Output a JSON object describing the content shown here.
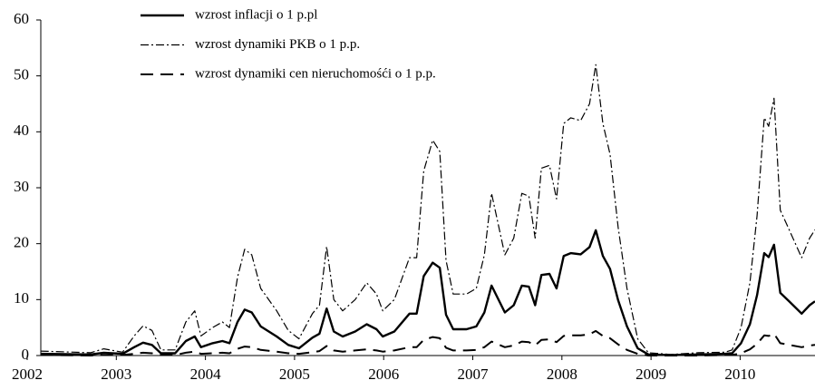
{
  "chart_data": {
    "type": "line",
    "legend": "top-left",
    "grid": false,
    "x": [
      2002.15,
      2002.71,
      2002.86,
      2003.07,
      2003.2,
      2003.3,
      2003.4,
      2003.5,
      2003.66,
      2003.78,
      2003.88,
      2003.95,
      2004.08,
      2004.19,
      2004.27,
      2004.36,
      2004.44,
      2004.52,
      2004.62,
      2004.8,
      2004.93,
      2005.05,
      2005.2,
      2005.28,
      2005.36,
      2005.44,
      2005.54,
      2005.68,
      2005.81,
      2005.92,
      2005.99,
      2006.12,
      2006.29,
      2006.37,
      2006.45,
      2006.55,
      2006.63,
      2006.7,
      2006.78,
      2006.93,
      2007.04,
      2007.13,
      2007.21,
      2007.36,
      2007.46,
      2007.55,
      2007.63,
      2007.7,
      2007.77,
      2007.86,
      2007.94,
      2008.02,
      2008.1,
      2008.21,
      2008.31,
      2008.38,
      2008.46,
      2008.54,
      2008.63,
      2008.73,
      2008.85,
      2008.97,
      2009.22,
      2009.53,
      2009.83,
      2009.91,
      2010.01,
      2010.11,
      2010.19,
      2010.27,
      2010.32,
      2010.38,
      2010.45,
      2010.55,
      2010.69,
      2010.78,
      2010.84
    ],
    "xlim": [
      2002,
      2010.84
    ],
    "xticks": [
      2002,
      2003,
      2004,
      2005,
      2006,
      2007,
      2008,
      2009,
      2010
    ],
    "ylim": [
      0,
      60
    ],
    "yticks": [
      0,
      10,
      20,
      30,
      40,
      50,
      60
    ],
    "series": [
      {
        "name": "wzrost inflacji o 1 p.pl",
        "color": "#000000",
        "dash": "solid",
        "values": [
          0.3,
          0.2,
          0.5,
          0.3,
          1.5,
          2.3,
          1.9,
          0.4,
          0.4,
          2.6,
          3.4,
          1.5,
          2.2,
          2.6,
          2.2,
          6.0,
          8.2,
          7.7,
          5.2,
          3.4,
          1.9,
          1.3,
          3.2,
          3.9,
          8.4,
          4.3,
          3.4,
          4.3,
          5.6,
          4.7,
          3.4,
          4.3,
          7.5,
          7.5,
          14.2,
          16.6,
          15.7,
          7.3,
          4.7,
          4.7,
          5.2,
          7.7,
          12.5,
          7.7,
          9.0,
          12.5,
          12.3,
          9.0,
          14.4,
          14.6,
          12.0,
          17.8,
          18.3,
          18.1,
          19.4,
          22.4,
          17.8,
          15.5,
          9.9,
          5.2,
          1.3,
          0.2,
          0.1,
          0.2,
          0.3,
          0.4,
          2.2,
          5.6,
          10.8,
          18.3,
          17.6,
          19.8,
          11.2,
          9.7,
          7.5,
          9.0,
          9.7
        ]
      },
      {
        "name": "wzrost dynamiki PKB o 1 p.p.",
        "color": "#000000",
        "dash": "dashdot",
        "values": [
          0.8,
          0.5,
          1.2,
          0.6,
          3.5,
          5.3,
          4.5,
          1.0,
          1.0,
          6.0,
          8.0,
          3.5,
          5.0,
          6.0,
          5.0,
          14.0,
          19.0,
          18.0,
          12.0,
          8.0,
          4.5,
          3.0,
          7.5,
          9.0,
          19.5,
          10.0,
          8.0,
          10.0,
          13.0,
          11.0,
          8.0,
          10.0,
          17.5,
          17.5,
          33.0,
          38.5,
          36.5,
          17.0,
          11.0,
          11.0,
          12.0,
          18.0,
          29.0,
          18.0,
          21.0,
          29.0,
          28.5,
          21.0,
          33.5,
          34.0,
          28.0,
          41.5,
          42.5,
          42.0,
          45.0,
          52.0,
          41.5,
          36.0,
          23.0,
          12.0,
          3.0,
          0.5,
          0.2,
          0.5,
          0.6,
          1.0,
          5.0,
          13.0,
          25.0,
          42.5,
          41.0,
          46.0,
          26.0,
          22.5,
          17.5,
          21.0,
          22.5
        ]
      },
      {
        "name": "wzrost dynamiki cen nieruchomośći o 1 p.p.",
        "color": "#000000",
        "dash": "dashed",
        "values": [
          0.1,
          0.0,
          0.1,
          0.1,
          0.3,
          0.5,
          0.4,
          0.1,
          0.1,
          0.5,
          0.7,
          0.3,
          0.4,
          0.5,
          0.4,
          1.2,
          1.6,
          1.5,
          1.0,
          0.7,
          0.4,
          0.3,
          0.6,
          0.8,
          1.7,
          0.9,
          0.7,
          0.9,
          1.1,
          0.9,
          0.7,
          0.9,
          1.5,
          1.5,
          2.8,
          3.3,
          3.1,
          1.4,
          0.9,
          0.9,
          1.0,
          1.5,
          2.5,
          1.5,
          1.8,
          2.5,
          2.4,
          1.8,
          2.8,
          2.9,
          2.4,
          3.5,
          3.6,
          3.6,
          3.8,
          4.4,
          3.5,
          3.1,
          2.0,
          1.0,
          0.3,
          0.0,
          0.0,
          0.0,
          0.1,
          0.1,
          0.4,
          1.1,
          2.1,
          3.6,
          3.5,
          3.9,
          2.2,
          1.9,
          1.5,
          1.8,
          1.9
        ]
      }
    ]
  }
}
